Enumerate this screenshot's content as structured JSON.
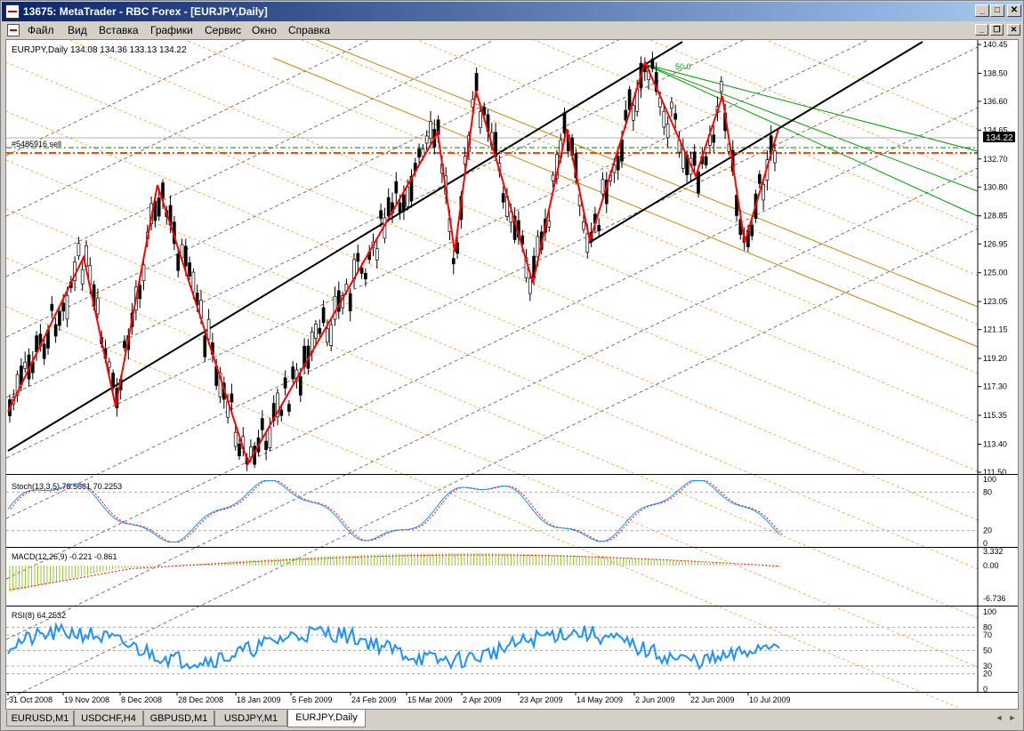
{
  "window": {
    "title": "13675: MetaTrader - RBC Forex - [EURJPY,Daily]",
    "btn_min": "_",
    "btn_max": "□",
    "btn_close": "✕"
  },
  "menu": {
    "items": [
      "Файл",
      "Вид",
      "Вставка",
      "Графики",
      "Сервис",
      "Окно",
      "Справка"
    ],
    "mdi_min": "_",
    "mdi_restore": "❐",
    "mdi_close": "✕"
  },
  "chart": {
    "header": "EURJPY,Daily  134.08 134.36 133.13 134.22",
    "symbol": "EURJPY",
    "timeframe": "Daily",
    "ohlc": {
      "open": 134.08,
      "high": 134.36,
      "low": 133.13,
      "close": 134.22
    },
    "order_label": "#5485916 sell",
    "current_price": "134.22",
    "price_ticks": [
      "140.45",
      "138.50",
      "136.60",
      "134.65",
      "132.70",
      "130.80",
      "128.85",
      "126.95",
      "125.00",
      "123.05",
      "121.15",
      "119.20",
      "117.30",
      "115.35",
      "113.40",
      "111.50"
    ],
    "fib_label": "50.0",
    "date_ticks": [
      "31 Oct 2008",
      "19 Nov 2008",
      "8 Dec 2008",
      "28 Dec 2008",
      "18 Jan 2009",
      "5 Feb 2009",
      "24 Feb 2009",
      "15 Mar 2009",
      "2 Apr 2009",
      "23 Apr 2009",
      "14 May 2009",
      "2 Jun 2009",
      "22 Jun 2009",
      "10 Jul 2009"
    ],
    "colors": {
      "zigzag": "#ff0000",
      "channel": "#000000",
      "fib_lines": "#ff8c00",
      "fan_lines": "#00a000",
      "stoch_main": "#1e90ff",
      "stoch_signal": "#ff0000",
      "macd_hist": "#9acd32",
      "rsi": "#1e90ff",
      "sell_line": "#ff4500",
      "order_line": "#008000"
    }
  },
  "stoch": {
    "label": "Stoch(13,3,5) 78.5661 70.2253",
    "levels": [
      "100",
      "80",
      "20",
      "0"
    ]
  },
  "macd": {
    "label": "MACD(12,26,9) -0.221 -0.861",
    "levels": [
      "3.332",
      "0.00",
      "-6.736"
    ]
  },
  "rsi": {
    "label": "RSI(8) 64.2532",
    "levels": [
      "100",
      "80",
      "70",
      "50",
      "30",
      "20",
      "0"
    ]
  },
  "tabs": [
    "EURUSD,M1",
    "USDCHF,H4",
    "GBPUSD,M1",
    "USDJPY,M1",
    "EURJPY,Daily"
  ],
  "active_tab": "EURJPY,Daily",
  "tab_scroll": {
    "left": "◄",
    "right": "►"
  }
}
